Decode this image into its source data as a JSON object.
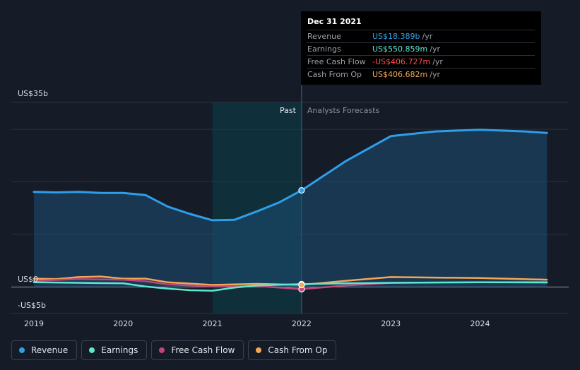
{
  "chart_data": {
    "type": "line",
    "x_ticks": [
      "2019",
      "2020",
      "2021",
      "2022",
      "2023",
      "2024"
    ],
    "y_ticks": [
      "US$35b",
      "US$0",
      "-US$5b"
    ],
    "ylim": [
      -5,
      35
    ],
    "xlim": [
      2019.0,
      2024.75
    ],
    "region_labels": {
      "past": "Past",
      "forecast": "Analysts Forecasts"
    },
    "split_x": 2022.0,
    "grid": true,
    "series": [
      {
        "name": "Revenue",
        "color": "#2f9ee8",
        "points": [
          [
            2019.0,
            18.1
          ],
          [
            2019.25,
            18.0
          ],
          [
            2019.5,
            18.1
          ],
          [
            2019.75,
            17.9
          ],
          [
            2020.0,
            17.9
          ],
          [
            2020.25,
            17.5
          ],
          [
            2020.5,
            15.3
          ],
          [
            2020.75,
            13.9
          ],
          [
            2021.0,
            12.7
          ],
          [
            2021.25,
            12.8
          ],
          [
            2021.5,
            14.4
          ],
          [
            2021.75,
            16.1
          ],
          [
            2022.0,
            18.389
          ],
          [
            2022.5,
            24.0
          ],
          [
            2023.0,
            28.7
          ],
          [
            2023.5,
            29.6
          ],
          [
            2024.0,
            29.9
          ],
          [
            2024.5,
            29.6
          ],
          [
            2024.75,
            29.3
          ]
        ]
      },
      {
        "name": "Earnings",
        "color": "#5ee7cf",
        "points": [
          [
            2019.0,
            0.9
          ],
          [
            2019.5,
            0.8
          ],
          [
            2020.0,
            0.7
          ],
          [
            2020.25,
            0.1
          ],
          [
            2020.5,
            -0.3
          ],
          [
            2020.75,
            -0.6
          ],
          [
            2021.0,
            -0.7
          ],
          [
            2021.25,
            -0.1
          ],
          [
            2021.5,
            0.3
          ],
          [
            2022.0,
            0.551
          ],
          [
            2022.5,
            0.7
          ],
          [
            2023.0,
            0.8
          ],
          [
            2024.0,
            0.9
          ],
          [
            2024.75,
            0.9
          ]
        ]
      },
      {
        "name": "Free Cash Flow",
        "color": "#c0467d",
        "points": [
          [
            2019.0,
            1.2
          ],
          [
            2019.5,
            1.5
          ],
          [
            2020.0,
            1.4
          ],
          [
            2020.25,
            1.1
          ],
          [
            2020.5,
            0.5
          ],
          [
            2021.0,
            0.1
          ],
          [
            2021.5,
            0.2
          ],
          [
            2022.0,
            -0.407
          ],
          [
            2022.5,
            0.3
          ],
          [
            2023.0,
            0.8
          ],
          [
            2024.0,
            0.9
          ],
          [
            2024.75,
            0.8
          ]
        ]
      },
      {
        "name": "Cash From Op",
        "color": "#f3a753",
        "points": [
          [
            2019.0,
            1.6
          ],
          [
            2019.25,
            1.5
          ],
          [
            2019.5,
            1.9
          ],
          [
            2019.75,
            2.0
          ],
          [
            2020.0,
            1.6
          ],
          [
            2020.25,
            1.6
          ],
          [
            2020.5,
            0.9
          ],
          [
            2021.0,
            0.4
          ],
          [
            2021.5,
            0.6
          ],
          [
            2022.0,
            0.407
          ],
          [
            2022.5,
            1.2
          ],
          [
            2023.0,
            1.9
          ],
          [
            2024.0,
            1.7
          ],
          [
            2024.75,
            1.4
          ]
        ]
      }
    ]
  },
  "tooltip": {
    "date": "Dec 31 2021",
    "rows": [
      {
        "label": "Revenue",
        "value": "US$18.389b",
        "unit": "/yr",
        "color": "#2f9ee8"
      },
      {
        "label": "Earnings",
        "value": "US$550.859m",
        "unit": "/yr",
        "color": "#5ee7cf"
      },
      {
        "label": "Free Cash Flow",
        "value": "-US$406.727m",
        "unit": "/yr",
        "color": "#ff4d4d"
      },
      {
        "label": "Cash From Op",
        "value": "US$406.682m",
        "unit": "/yr",
        "color": "#f3a753"
      }
    ]
  },
  "legend": [
    {
      "label": "Revenue",
      "color": "#2f9ee8"
    },
    {
      "label": "Earnings",
      "color": "#5ee7cf"
    },
    {
      "label": "Free Cash Flow",
      "color": "#c0467d"
    },
    {
      "label": "Cash From Op",
      "color": "#f3a753"
    }
  ]
}
